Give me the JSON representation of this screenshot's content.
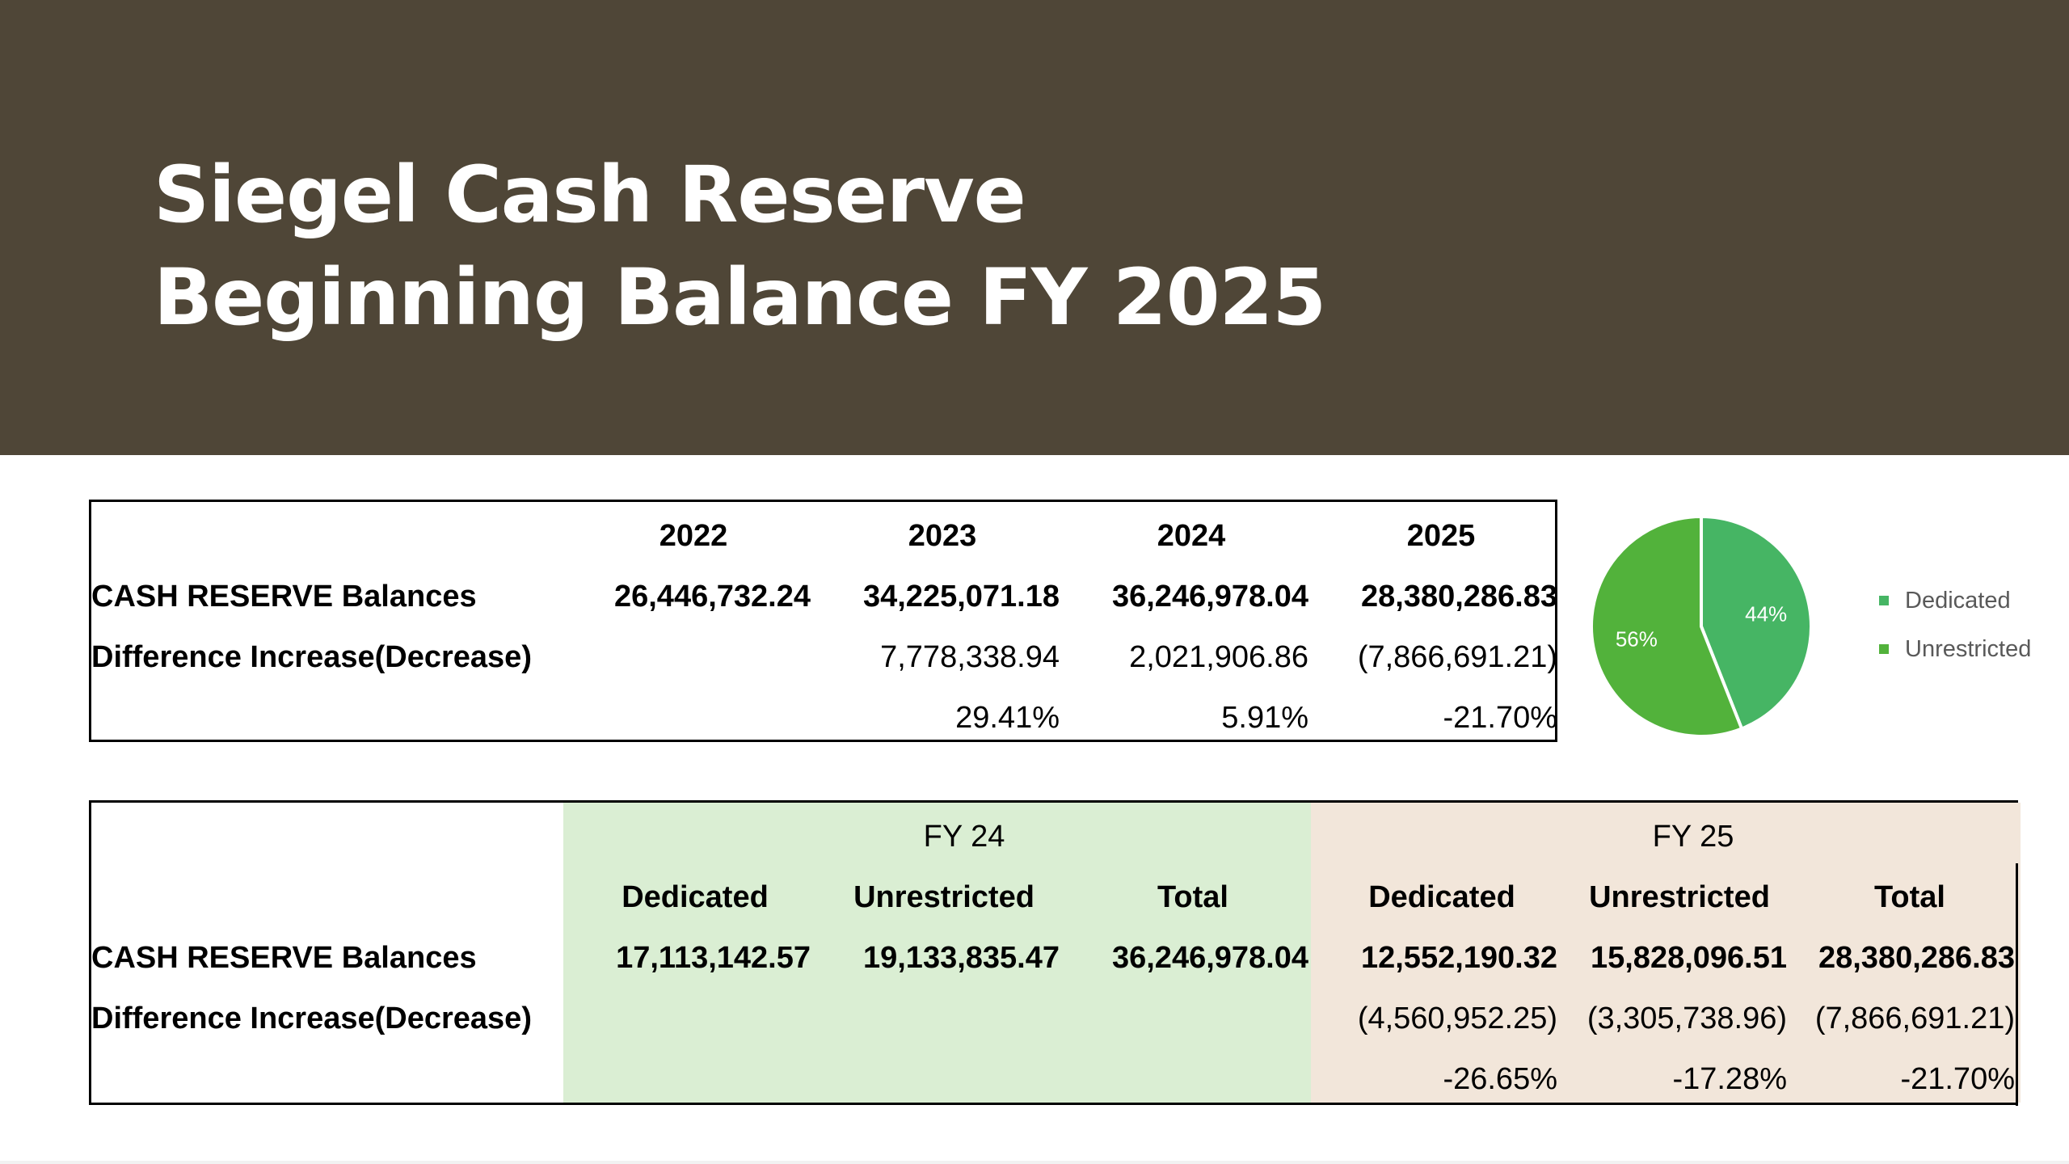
{
  "title": {
    "line1": "Siegel Cash Reserve",
    "line2": "Beginning Balance FY 2025"
  },
  "table1": {
    "years": [
      "2022",
      "2023",
      "2024",
      "2025"
    ],
    "balances_label": "CASH RESERVE Balances",
    "balances": [
      "26,446,732.24",
      "34,225,071.18",
      "36,246,978.04",
      "28,380,286.83"
    ],
    "difference_label": "Difference Increase(Decrease)",
    "differences": [
      "",
      "7,778,338.94",
      "2,021,906.86",
      "(7,866,691.21)"
    ],
    "percents": [
      "",
      "29.41%",
      "5.91%",
      "-21.70%"
    ]
  },
  "table2": {
    "fy24_header": "FY 24",
    "fy25_header": "FY 25",
    "fy24_columns": [
      "Dedicated",
      "Unrestricted",
      "Total"
    ],
    "fy25_columns": [
      "Dedicated",
      "Unrestricted",
      "Total"
    ],
    "balances_label": "CASH RESERVE Balances",
    "fy24_balances": [
      "17,113,142.57",
      "19,133,835.47",
      "36,246,978.04"
    ],
    "fy25_balances": [
      "12,552,190.32",
      "15,828,096.51",
      "28,380,286.83"
    ],
    "difference_label": "Difference Increase(Decrease)",
    "fy25_differences": [
      "(4,560,952.25)",
      "(3,305,738.96)",
      "(7,866,691.21)"
    ],
    "fy25_percents": [
      "-26.65%",
      "-17.28%",
      "-21.70%"
    ]
  },
  "colors": {
    "banner": "#4f4637",
    "fy24_fill": "#daeed3",
    "fy25_fill": "#f2e6da",
    "dedicated": "#46b564",
    "unrestricted": "#52b23b"
  },
  "chart_data": {
    "type": "pie",
    "slices": [
      {
        "name": "Dedicated",
        "value": 44,
        "label": "44%",
        "color": "#46b564"
      },
      {
        "name": "Unrestricted",
        "value": 56,
        "label": "56%",
        "color": "#52b23b"
      }
    ],
    "legend": [
      "Dedicated",
      "Unrestricted"
    ],
    "legend_position": "right"
  }
}
